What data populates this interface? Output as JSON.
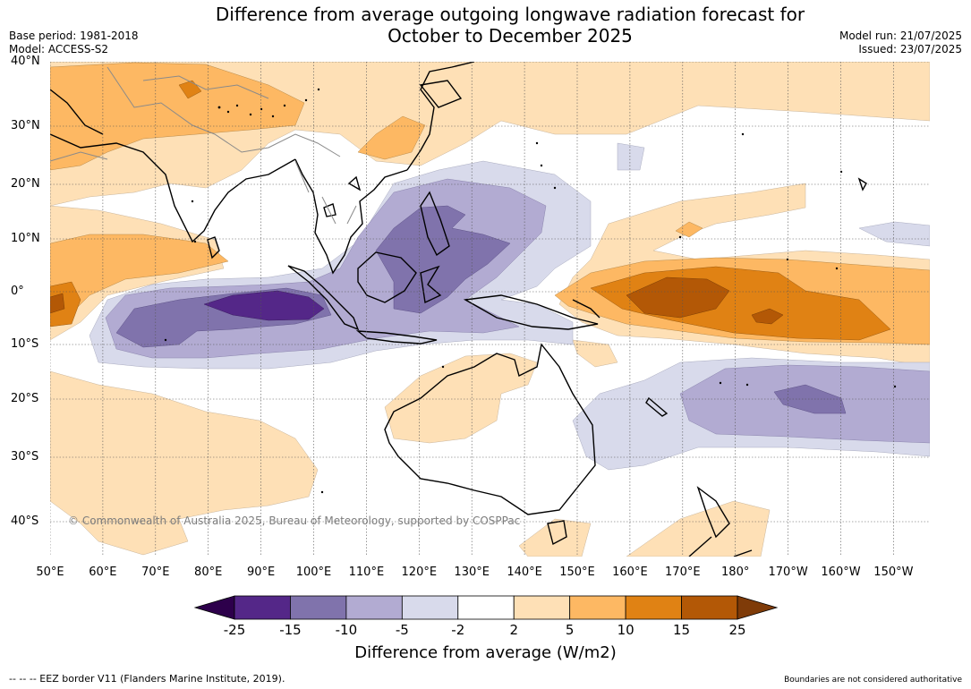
{
  "title_line1": "Difference from average outgoing longwave radiation forecast for",
  "title_line2": "October to December 2025",
  "base_period": "Base period: 1981-2018",
  "model": "Model: ACCESS-S2",
  "model_run": "Model run: 21/07/2025",
  "issued": "Issued: 23/07/2025",
  "lat_labels": [
    "40°N",
    "30°N",
    "20°N",
    "10°N",
    "0°",
    "10°S",
    "20°S",
    "30°S",
    "40°S"
  ],
  "lon_labels": [
    "50°E",
    "60°E",
    "70°E",
    "80°E",
    "90°E",
    "100°E",
    "110°E",
    "120°E",
    "130°E",
    "140°E",
    "150°E",
    "160°E",
    "170°E",
    "180°",
    "170°W",
    "160°W",
    "150°W"
  ],
  "copyright": "© Commonwealth of Australia 2025, Bureau of Meteorology, supported by COSPPac",
  "colorbar": {
    "ticks": [
      "-25",
      "-15",
      "-10",
      "-5",
      "-2",
      "2",
      "5",
      "10",
      "15",
      "25"
    ],
    "colors": [
      "#2d004b",
      "#542788",
      "#8073ac",
      "#b2abd2",
      "#d8daeb",
      "#ffffff",
      "#fee0b6",
      "#fdb863",
      "#e08214",
      "#b35806",
      "#7f3b08"
    ],
    "label": "Difference from average (W/m2)"
  },
  "footnote_left": "--  --  -- EEZ border V11 (Flanders Marine Institute, 2019).",
  "footnote_right": "Boundaries are not considered authoritative"
}
